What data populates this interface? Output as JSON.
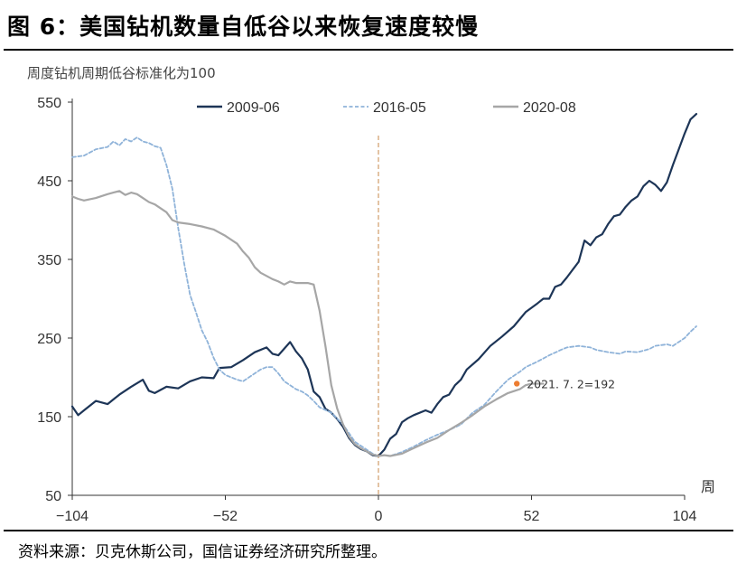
{
  "title": "图 6：美国钻机数量自低谷以来恢复速度较慢",
  "source": "资料来源：贝克休斯公司，国信证券经济研究所整理。",
  "chart_data": {
    "type": "line",
    "subtitle": "周度钻机周期低谷标准化为100",
    "xlabel": "周",
    "ylabel": "",
    "xlim": [
      -104,
      104
    ],
    "ylim": [
      50,
      550
    ],
    "xticks": [
      -104,
      -52,
      0,
      52,
      104
    ],
    "xtick_labels": [
      "−104",
      "−52",
      "0",
      "52",
      "104"
    ],
    "yticks": [
      50,
      150,
      250,
      350,
      450,
      550
    ],
    "ytick_labels": [
      "50",
      "150",
      "250",
      "350",
      "450",
      "550"
    ],
    "grid": false,
    "legend_position": "top",
    "reference_line": {
      "x": 0,
      "color": "#d4a373",
      "style": "dashed"
    },
    "series": [
      {
        "name": "2009-06",
        "color": "#1d3557",
        "style": "solid",
        "points": [
          [
            -104,
            163
          ],
          [
            -102,
            152
          ],
          [
            -100,
            158
          ],
          [
            -96,
            170
          ],
          [
            -92,
            166
          ],
          [
            -88,
            178
          ],
          [
            -84,
            188
          ],
          [
            -80,
            197
          ],
          [
            -78,
            183
          ],
          [
            -76,
            180
          ],
          [
            -72,
            188
          ],
          [
            -68,
            186
          ],
          [
            -64,
            195
          ],
          [
            -60,
            200
          ],
          [
            -56,
            199
          ],
          [
            -54,
            212
          ],
          [
            -50,
            213
          ],
          [
            -46,
            222
          ],
          [
            -42,
            232
          ],
          [
            -38,
            238
          ],
          [
            -36,
            230
          ],
          [
            -34,
            228
          ],
          [
            -30,
            245
          ],
          [
            -28,
            233
          ],
          [
            -26,
            224
          ],
          [
            -24,
            210
          ],
          [
            -22,
            182
          ],
          [
            -20,
            175
          ],
          [
            -18,
            160
          ],
          [
            -16,
            155
          ],
          [
            -14,
            147
          ],
          [
            -12,
            137
          ],
          [
            -10,
            123
          ],
          [
            -8,
            114
          ],
          [
            -6,
            109
          ],
          [
            -4,
            106
          ],
          [
            -2,
            101
          ],
          [
            0,
            100
          ],
          [
            2,
            108
          ],
          [
            4,
            122
          ],
          [
            6,
            128
          ],
          [
            8,
            143
          ],
          [
            10,
            148
          ],
          [
            12,
            152
          ],
          [
            16,
            158
          ],
          [
            18,
            155
          ],
          [
            20,
            166
          ],
          [
            22,
            175
          ],
          [
            24,
            178
          ],
          [
            26,
            190
          ],
          [
            28,
            197
          ],
          [
            30,
            210
          ],
          [
            34,
            223
          ],
          [
            38,
            240
          ],
          [
            42,
            252
          ],
          [
            46,
            265
          ],
          [
            50,
            283
          ],
          [
            54,
            294
          ],
          [
            56,
            300
          ],
          [
            58,
            300
          ],
          [
            60,
            315
          ],
          [
            62,
            318
          ],
          [
            64,
            327
          ],
          [
            68,
            347
          ],
          [
            70,
            374
          ],
          [
            72,
            368
          ],
          [
            74,
            378
          ],
          [
            76,
            382
          ],
          [
            78,
            395
          ],
          [
            80,
            405
          ],
          [
            82,
            407
          ],
          [
            84,
            417
          ],
          [
            86,
            425
          ],
          [
            88,
            430
          ],
          [
            90,
            443
          ],
          [
            92,
            450
          ],
          [
            94,
            445
          ],
          [
            96,
            437
          ],
          [
            98,
            448
          ],
          [
            100,
            470
          ],
          [
            102,
            490
          ],
          [
            104,
            510
          ],
          [
            106,
            528
          ],
          [
            108,
            535
          ]
        ]
      },
      {
        "name": "2016-05",
        "color": "#8fb3d9",
        "style": "dashed",
        "points": [
          [
            -104,
            480
          ],
          [
            -100,
            482
          ],
          [
            -96,
            490
          ],
          [
            -92,
            493
          ],
          [
            -90,
            500
          ],
          [
            -88,
            495
          ],
          [
            -86,
            503
          ],
          [
            -84,
            500
          ],
          [
            -82,
            505
          ],
          [
            -80,
            500
          ],
          [
            -78,
            498
          ],
          [
            -76,
            494
          ],
          [
            -74,
            492
          ],
          [
            -72,
            470
          ],
          [
            -70,
            440
          ],
          [
            -68,
            390
          ],
          [
            -66,
            345
          ],
          [
            -64,
            305
          ],
          [
            -62,
            283
          ],
          [
            -60,
            260
          ],
          [
            -58,
            245
          ],
          [
            -56,
            225
          ],
          [
            -54,
            210
          ],
          [
            -52,
            203
          ],
          [
            -50,
            200
          ],
          [
            -48,
            197
          ],
          [
            -46,
            195
          ],
          [
            -44,
            200
          ],
          [
            -42,
            205
          ],
          [
            -40,
            210
          ],
          [
            -38,
            213
          ],
          [
            -36,
            213
          ],
          [
            -34,
            205
          ],
          [
            -32,
            195
          ],
          [
            -30,
            190
          ],
          [
            -28,
            185
          ],
          [
            -26,
            182
          ],
          [
            -24,
            177
          ],
          [
            -22,
            170
          ],
          [
            -20,
            162
          ],
          [
            -16,
            155
          ],
          [
            -12,
            140
          ],
          [
            -8,
            118
          ],
          [
            -4,
            108
          ],
          [
            -2,
            103
          ],
          [
            0,
            100
          ],
          [
            2,
            101
          ],
          [
            4,
            100
          ],
          [
            8,
            105
          ],
          [
            12,
            112
          ],
          [
            16,
            120
          ],
          [
            20,
            127
          ],
          [
            24,
            133
          ],
          [
            28,
            140
          ],
          [
            32,
            155
          ],
          [
            36,
            165
          ],
          [
            40,
            182
          ],
          [
            44,
            197
          ],
          [
            48,
            207
          ],
          [
            50,
            213
          ],
          [
            54,
            220
          ],
          [
            58,
            228
          ],
          [
            62,
            235
          ],
          [
            64,
            238
          ],
          [
            68,
            240
          ],
          [
            72,
            238
          ],
          [
            74,
            235
          ],
          [
            78,
            232
          ],
          [
            82,
            230
          ],
          [
            84,
            233
          ],
          [
            88,
            232
          ],
          [
            92,
            236
          ],
          [
            94,
            240
          ],
          [
            98,
            242
          ],
          [
            100,
            240
          ],
          [
            102,
            245
          ],
          [
            104,
            250
          ],
          [
            106,
            258
          ],
          [
            108,
            265
          ]
        ]
      },
      {
        "name": "2020-08",
        "color": "#a6a6a6",
        "style": "solid",
        "points": [
          [
            -104,
            430
          ],
          [
            -102,
            427
          ],
          [
            -100,
            425
          ],
          [
            -96,
            428
          ],
          [
            -92,
            433
          ],
          [
            -88,
            437
          ],
          [
            -86,
            432
          ],
          [
            -84,
            435
          ],
          [
            -82,
            433
          ],
          [
            -80,
            428
          ],
          [
            -78,
            423
          ],
          [
            -76,
            420
          ],
          [
            -74,
            415
          ],
          [
            -72,
            410
          ],
          [
            -70,
            400
          ],
          [
            -68,
            397
          ],
          [
            -64,
            395
          ],
          [
            -60,
            392
          ],
          [
            -56,
            388
          ],
          [
            -52,
            380
          ],
          [
            -48,
            370
          ],
          [
            -46,
            360
          ],
          [
            -44,
            352
          ],
          [
            -42,
            340
          ],
          [
            -40,
            333
          ],
          [
            -36,
            325
          ],
          [
            -34,
            322
          ],
          [
            -32,
            318
          ],
          [
            -30,
            322
          ],
          [
            -28,
            320
          ],
          [
            -24,
            320
          ],
          [
            -22,
            318
          ],
          [
            -20,
            285
          ],
          [
            -18,
            240
          ],
          [
            -16,
            190
          ],
          [
            -14,
            160
          ],
          [
            -12,
            140
          ],
          [
            -10,
            125
          ],
          [
            -8,
            115
          ],
          [
            -6,
            110
          ],
          [
            -4,
            106
          ],
          [
            -2,
            102
          ],
          [
            0,
            100
          ],
          [
            2,
            101
          ],
          [
            4,
            100
          ],
          [
            8,
            103
          ],
          [
            12,
            110
          ],
          [
            16,
            117
          ],
          [
            20,
            123
          ],
          [
            24,
            133
          ],
          [
            28,
            142
          ],
          [
            32,
            152
          ],
          [
            36,
            163
          ],
          [
            40,
            172
          ],
          [
            44,
            180
          ],
          [
            48,
            185
          ],
          [
            50,
            190
          ],
          [
            52,
            192
          ],
          [
            54,
            192
          ],
          [
            56,
            192
          ]
        ]
      }
    ],
    "annotation": {
      "x": 47,
      "y": 192,
      "text": "2021. 7. 2=192",
      "color": "#ed7d31"
    }
  }
}
